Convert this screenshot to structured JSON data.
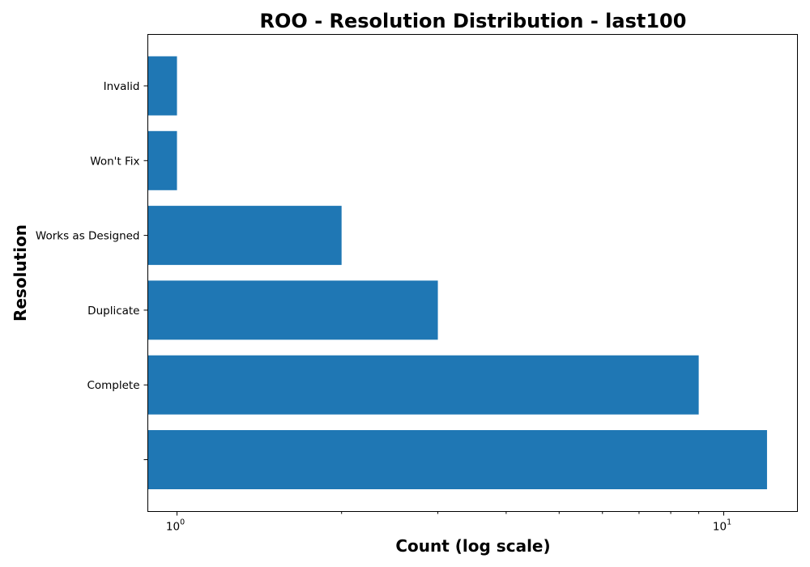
{
  "chart_data": {
    "type": "bar",
    "orientation": "horizontal",
    "title": "ROO - Resolution Distribution - last100",
    "xlabel": "Count (log scale)",
    "ylabel": "Resolution",
    "x_scale": "log",
    "xlim": [
      0.95,
      13
    ],
    "categories": [
      "Invalid",
      "Won't Fix",
      "Works as Designed",
      "Duplicate",
      "Complete",
      ""
    ],
    "values": [
      1,
      1,
      2,
      3,
      9,
      12
    ],
    "x_major_ticks": [
      {
        "base": "10",
        "exp": "0",
        "value": 1
      },
      {
        "base": "10",
        "exp": "1",
        "value": 10
      }
    ],
    "x_minor_ticks": [
      2,
      3,
      4,
      5,
      6,
      7,
      8,
      9
    ],
    "bar_color": "#1f77b4",
    "grid": false,
    "legend": "none"
  }
}
